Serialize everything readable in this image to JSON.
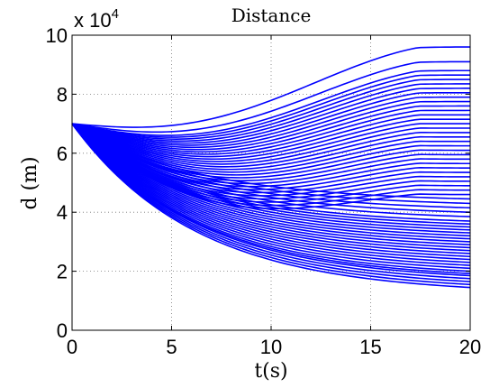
{
  "chart_data": {
    "type": "line",
    "title": "Distance",
    "xlabel": "t(s)",
    "ylabel": "d (m)",
    "y_multiplier_label": "x 10",
    "y_multiplier_exponent": "4",
    "xlim": [
      0,
      20
    ],
    "ylim": [
      0,
      100000
    ],
    "x_ticks": [
      0,
      5,
      10,
      15,
      20
    ],
    "x_tick_labels": [
      "0",
      "5",
      "10",
      "15",
      "20"
    ],
    "y_ticks": [
      0,
      20000,
      40000,
      60000,
      80000,
      100000
    ],
    "y_tick_labels": [
      "0",
      "2",
      "4",
      "6",
      "8",
      "10"
    ],
    "grid": true,
    "grid_style": "dotted",
    "line_color": "#0000ff",
    "series_count": 60,
    "start_value": 70000,
    "final_values": [
      14500,
      15500,
      16500,
      17500,
      18500,
      19200,
      20000,
      21000,
      22000,
      23000,
      24000,
      25000,
      26000,
      27000,
      28000,
      29000,
      30000,
      31000,
      32000,
      33000,
      34000,
      35000,
      36000,
      37000,
      38500,
      40000,
      41500,
      43000,
      44500,
      46000,
      47500,
      49000,
      50500,
      52000,
      53500,
      55000,
      56500,
      58000,
      59500,
      61000,
      62500,
      64000,
      65500,
      67000,
      68500,
      70000,
      71500,
      73000,
      74500,
      76000,
      77500,
      79000,
      80500,
      82000,
      83500,
      85000,
      86500,
      88000,
      91000,
      96000
    ]
  }
}
